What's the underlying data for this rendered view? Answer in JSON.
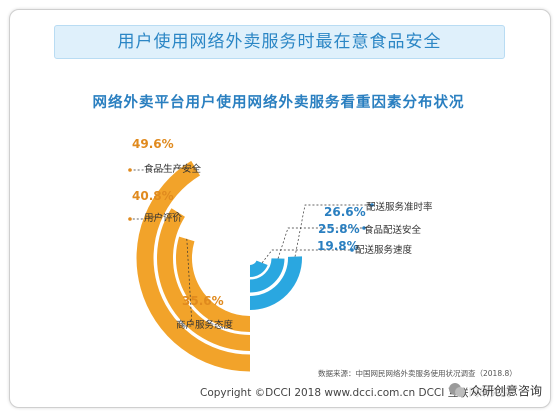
{
  "banner_title": "用户使用网络外卖服务时最在意食品安全",
  "chart_data": {
    "type": "bar",
    "subtitle": "网络外卖平台用户使用网络外卖服务看重因素分布状况",
    "unit": "%",
    "categories": [
      "食品生产安全",
      "用户评价",
      "商户服务态度",
      "配送服务准时率",
      "食品配送安全",
      "配送服务速度"
    ],
    "values": [
      49.6,
      40.8,
      35.6,
      26.6,
      25.8,
      19.8
    ],
    "value_labels": [
      "49.6%",
      "40.8%",
      "35.6%",
      "26.6%",
      "25.8%",
      "19.8%"
    ],
    "colors": {
      "orange": "#f2a32a",
      "blue": "#2aa7e0",
      "label_orange": "#e08a1e",
      "label_blue": "#2a7fc0"
    },
    "legend": "none",
    "grid": false
  },
  "source": "数据来源：中国网民网络外卖服务使用状况调查（2018.8）",
  "copyright": "Copyright ©DCCI 2018  www.dcci.com.cn   DCCI 互联网研究院",
  "watermark": "众研创意咨询"
}
